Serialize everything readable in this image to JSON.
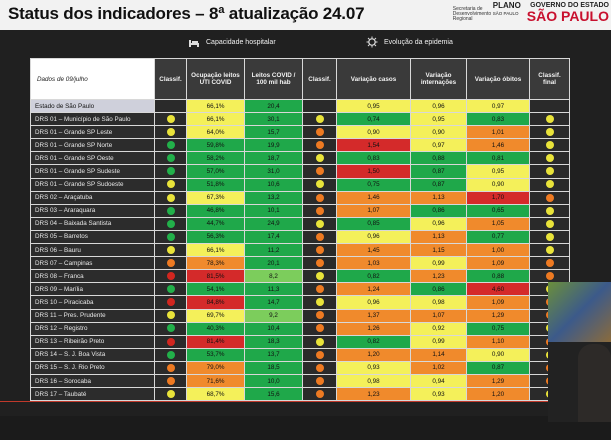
{
  "header": {
    "title": "Status dos indicadores – 8ª atualização 24.07",
    "logo_secretaria": "Secretaria de Desenvolvimento Regional",
    "logo_plano": "PLANO",
    "logo_plano_sub": "SÃO PAULO",
    "logo_gov": "GOVERNO DO ESTADO",
    "logo_gov_big": "SÃO PAULO"
  },
  "sections": {
    "capacidade": "Capacidade hospitalar",
    "evolucao": "Evolução da epidemia"
  },
  "table": {
    "headers": {
      "dados": "Dados de 09/julho",
      "classif": "Classif.",
      "ocupacao": "Ocupação leitos UTI COVID",
      "leitos": "Leitos COVID / 100 mil hab",
      "classif2": "Classif.",
      "var_casos": "Variação casos",
      "var_intern": "Variação internações",
      "var_obitos": "Variação óbitos",
      "classif_final": "Classif. final"
    },
    "rows": [
      {
        "name": "Estado de São Paulo",
        "occ": "66,1%",
        "leitos": "20,4",
        "casos": "0,95",
        "intern": "0,96",
        "obitos": "0,97",
        "c1": "",
        "c2": "",
        "cf": ""
      },
      {
        "name": "DRS 01 – Município de São Paulo",
        "occ": "66,1%",
        "leitos": "30,1",
        "casos": "0,74",
        "intern": "0,95",
        "obitos": "0,83",
        "c1": "y",
        "c2": "y",
        "cf": "y"
      },
      {
        "name": "DRS 01 – Grande SP Leste",
        "occ": "64,0%",
        "leitos": "15,7",
        "casos": "0,90",
        "intern": "0,90",
        "obitos": "1,01",
        "c1": "y",
        "c2": "o",
        "cf": "y"
      },
      {
        "name": "DRS 01 – Grande SP Norte",
        "occ": "59,8%",
        "leitos": "19,9",
        "casos": "1,54",
        "intern": "0,97",
        "obitos": "1,46",
        "c1": "g",
        "c2": "o",
        "cf": "y"
      },
      {
        "name": "DRS 01 – Grande SP Oeste",
        "occ": "58,2%",
        "leitos": "18,7",
        "casos": "0,83",
        "intern": "0,88",
        "obitos": "0,81",
        "c1": "g",
        "c2": "y",
        "cf": "y"
      },
      {
        "name": "DRS 01 – Grande SP Sudeste",
        "occ": "57,0%",
        "leitos": "31,0",
        "casos": "1,50",
        "intern": "0,87",
        "obitos": "0,95",
        "c1": "g",
        "c2": "o",
        "cf": "y"
      },
      {
        "name": "DRS 01 – Grande SP Sudoeste",
        "occ": "51,8%",
        "leitos": "10,6",
        "casos": "0,75",
        "intern": "0,87",
        "obitos": "0,90",
        "c1": "y",
        "c2": "y",
        "cf": "y"
      },
      {
        "name": "DRS 02 – Araçatuba",
        "occ": "67,3%",
        "leitos": "13,2",
        "casos": "1,46",
        "intern": "1,13",
        "obitos": "1,70",
        "c1": "y",
        "c2": "o",
        "cf": "o"
      },
      {
        "name": "DRS 03 – Araraquara",
        "occ": "46,8%",
        "leitos": "10,1",
        "casos": "1,07",
        "intern": "0,86",
        "obitos": "0,65",
        "c1": "g",
        "c2": "o",
        "cf": "y"
      },
      {
        "name": "DRS 04 – Baixada Santista",
        "occ": "44,7%",
        "leitos": "24,9",
        "casos": "0,85",
        "intern": "0,96",
        "obitos": "1,05",
        "c1": "g",
        "c2": "y",
        "cf": "y"
      },
      {
        "name": "DRS 05 – Barretos",
        "occ": "56,3%",
        "leitos": "17,4",
        "casos": "0,96",
        "intern": "1,13",
        "obitos": "0,77",
        "c1": "g",
        "c2": "o",
        "cf": "y"
      },
      {
        "name": "DRS 06 – Bauru",
        "occ": "66,1%",
        "leitos": "11,2",
        "casos": "1,45",
        "intern": "1,15",
        "obitos": "1,00",
        "c1": "y",
        "c2": "o",
        "cf": "y"
      },
      {
        "name": "DRS 07 – Campinas",
        "occ": "78,3%",
        "leitos": "20,1",
        "casos": "1,03",
        "intern": "0,99",
        "obitos": "1,09",
        "c1": "o",
        "c2": "o",
        "cf": "o"
      },
      {
        "name": "DRS 08 – Franca",
        "occ": "81,5%",
        "leitos": "8,2",
        "casos": "0,82",
        "intern": "1,23",
        "obitos": "0,88",
        "c1": "r",
        "c2": "y",
        "cf": "o"
      },
      {
        "name": "DRS 09 – Marília",
        "occ": "54,1%",
        "leitos": "11,3",
        "casos": "1,24",
        "intern": "0,86",
        "obitos": "4,60",
        "c1": "g",
        "c2": "o",
        "cf": "y"
      },
      {
        "name": "DRS 10 – Piracicaba",
        "occ": "84,8%",
        "leitos": "14,7",
        "casos": "0,96",
        "intern": "0,98",
        "obitos": "1,09",
        "c1": "r",
        "c2": "y",
        "cf": "o"
      },
      {
        "name": "DRS 11 – Pres. Prudente",
        "occ": "69,7%",
        "leitos": "9,2",
        "casos": "1,37",
        "intern": "1,07",
        "obitos": "1,29",
        "c1": "y",
        "c2": "o",
        "cf": "o"
      },
      {
        "name": "DRS 12 – Registro",
        "occ": "40,3%",
        "leitos": "10,4",
        "casos": "1,26",
        "intern": "0,92",
        "obitos": "0,75",
        "c1": "g",
        "c2": "o",
        "cf": "y"
      },
      {
        "name": "DRS 13 – Ribeirão Preto",
        "occ": "81,4%",
        "leitos": "18,3",
        "casos": "0,82",
        "intern": "0,99",
        "obitos": "1,10",
        "c1": "r",
        "c2": "y",
        "cf": "o"
      },
      {
        "name": "DRS 14 – S. J. Boa Vista",
        "occ": "53,7%",
        "leitos": "13,7",
        "casos": "1,20",
        "intern": "1,14",
        "obitos": "0,90",
        "c1": "g",
        "c2": "o",
        "cf": "y"
      },
      {
        "name": "DRS 15 – S. J. Rio Preto",
        "occ": "79,0%",
        "leitos": "18,5",
        "casos": "0,93",
        "intern": "1,02",
        "obitos": "0,87",
        "c1": "o",
        "c2": "o",
        "cf": "o"
      },
      {
        "name": "DRS 16 – Sorocaba",
        "occ": "71,6%",
        "leitos": "10,0",
        "casos": "0,98",
        "intern": "0,94",
        "obitos": "1,29",
        "c1": "o",
        "c2": "o",
        "cf": "o"
      },
      {
        "name": "DRS 17 – Taubaté",
        "occ": "68,7%",
        "leitos": "15,6",
        "casos": "1,23",
        "intern": "0,93",
        "obitos": "1,20",
        "c1": "y",
        "c2": "o",
        "cf": "y"
      }
    ]
  },
  "colors": {
    "green": "#1fa84a",
    "light_green": "#7ccd5c",
    "yellow": "#f4f05a",
    "orange": "#f08a2c",
    "red": "#d42a2a",
    "dot_yellow": "#e9e33a",
    "dot_green": "#22b04a",
    "dot_orange": "#ee7a22",
    "dot_red": "#d2261f"
  }
}
